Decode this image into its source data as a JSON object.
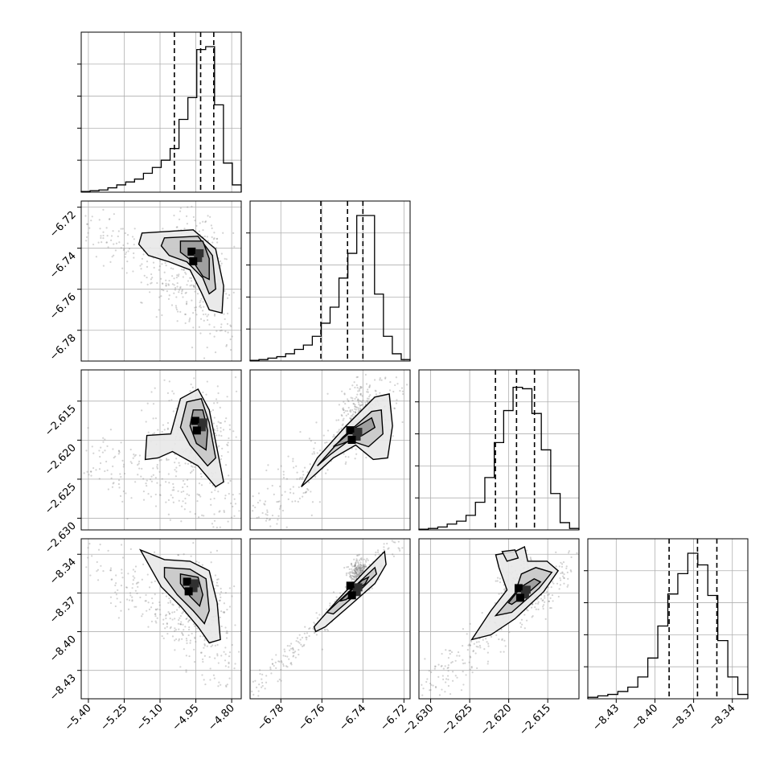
{
  "chart_data": {
    "type": "corner",
    "title": "",
    "parameters": [
      {
        "range": [
          -5.43,
          -4.76
        ],
        "ticks": [
          -5.4,
          -5.25,
          -5.1,
          -4.95,
          -4.8
        ],
        "tick_labels": [
          "−5.40",
          "−5.25",
          "−5.10",
          "−4.95",
          "−4.80"
        ],
        "quantiles": [
          -5.04,
          -4.93,
          -4.875
        ]
      },
      {
        "range": [
          -6.795,
          -6.717
        ],
        "ticks": [
          -6.78,
          -6.76,
          -6.74,
          -6.72
        ],
        "tick_labels": [
          "−6.78",
          "−6.76",
          "−6.74",
          "−6.72"
        ],
        "quantiles": [
          -6.7605,
          -6.7475,
          -6.74
        ]
      },
      {
        "range": [
          -2.6315,
          -2.611
        ],
        "ticks": [
          -2.63,
          -2.625,
          -2.62,
          -2.615
        ],
        "tick_labels": [
          "−2.630",
          "−2.625",
          "−2.620",
          "−2.615"
        ],
        "quantiles": [
          -2.6217,
          -2.619,
          -2.6167
        ]
      },
      {
        "range": [
          -8.452,
          -8.328
        ],
        "ticks": [
          -8.43,
          -8.4,
          -8.37,
          -8.34
        ],
        "tick_labels": [
          "−8.43",
          "−8.40",
          "−8.37",
          "−8.34"
        ],
        "quantiles": [
          -8.389,
          -8.367,
          -8.352
        ]
      }
    ],
    "histograms": [
      [
        0.005,
        0.01,
        0.015,
        0.03,
        0.05,
        0.07,
        0.09,
        0.13,
        0.17,
        0.22,
        0.3,
        0.5,
        0.65,
        0.98,
        1.0,
        0.6,
        0.2,
        0.05
      ],
      [
        0.005,
        0.01,
        0.02,
        0.03,
        0.05,
        0.08,
        0.11,
        0.17,
        0.26,
        0.37,
        0.57,
        0.74,
        1.0,
        1.0,
        0.46,
        0.17,
        0.05,
        0.01
      ],
      [
        0.005,
        0.01,
        0.02,
        0.04,
        0.06,
        0.1,
        0.19,
        0.36,
        0.6,
        0.82,
        0.98,
        0.97,
        0.8,
        0.55,
        0.25,
        0.05,
        0.01
      ],
      [
        0.01,
        0.02,
        0.03,
        0.05,
        0.08,
        0.15,
        0.28,
        0.5,
        0.72,
        0.86,
        1.0,
        0.92,
        0.71,
        0.4,
        0.15,
        0.03
      ]
    ],
    "grid": true
  }
}
